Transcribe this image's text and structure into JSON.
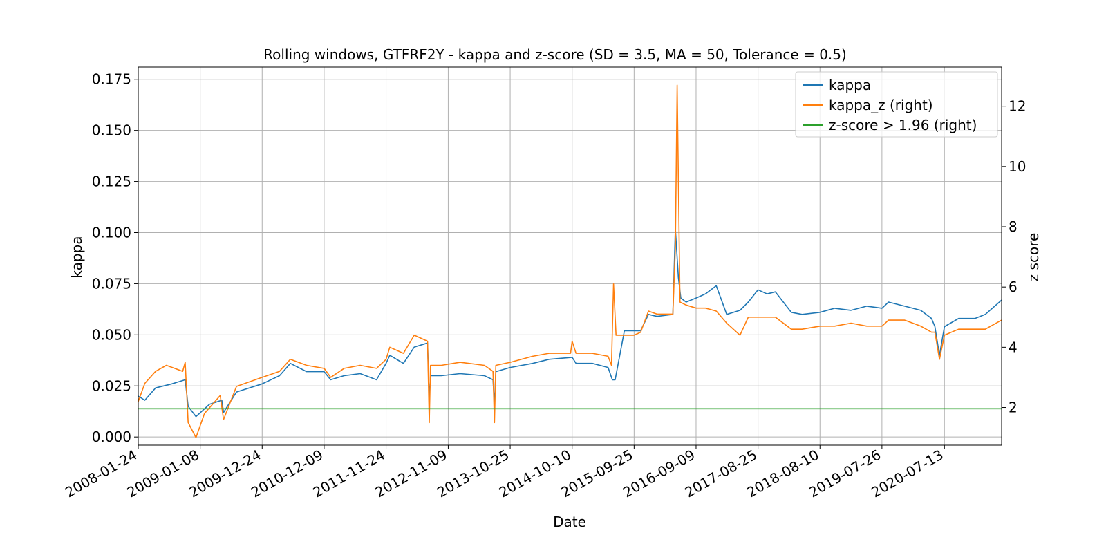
{
  "chart_data": {
    "type": "line",
    "title": "Rolling windows, GTFRF2Y - kappa and z-score (SD = 3.5, MA = 50, Tolerance  = 0.5)",
    "xlabel": "Date",
    "ylabel": "kappa",
    "ylabel_right": "z score",
    "xlim": [
      "2008-01-24",
      "2021-06-01"
    ],
    "ylim": [
      -0.004,
      0.181
    ],
    "ylim_right": [
      0.75,
      13.3
    ],
    "x_ticks": [
      "2008-01-24",
      "2009-01-08",
      "2009-12-24",
      "2010-12-09",
      "2011-11-24",
      "2012-11-09",
      "2013-10-25",
      "2014-10-10",
      "2015-09-25",
      "2016-09-09",
      "2017-08-25",
      "2018-08-10",
      "2019-07-26",
      "2020-07-13"
    ],
    "y_ticks": [
      "0.000",
      "0.025",
      "0.050",
      "0.075",
      "0.100",
      "0.125",
      "0.150",
      "0.175"
    ],
    "y_ticks_right": [
      "2",
      "4",
      "6",
      "8",
      "10",
      "12"
    ],
    "grid": true,
    "legend_position": "top-right",
    "colors": {
      "kappa": "#1f77b4",
      "kappa_z": "#ff7f0e",
      "threshold": "#2ca02c"
    },
    "series": [
      {
        "name": "kappa",
        "axis": "left",
        "x": [
          "2008-01-24",
          "2008-03-01",
          "2008-05-01",
          "2008-08-01",
          "2008-10-15",
          "2008-11-01",
          "2008-12-15",
          "2009-01-10",
          "2009-03-01",
          "2009-05-10",
          "2009-05-20",
          "2009-08-01",
          "2009-12-24",
          "2010-04-01",
          "2010-06-01",
          "2010-09-01",
          "2010-12-09",
          "2011-01-15",
          "2011-04-01",
          "2011-07-01",
          "2011-10-01",
          "2011-11-24",
          "2011-12-15",
          "2012-03-01",
          "2012-05-01",
          "2012-07-15",
          "2012-07-25",
          "2012-08-01",
          "2012-10-01",
          "2013-01-15",
          "2013-06-01",
          "2013-07-20",
          "2013-07-28",
          "2013-08-05",
          "2013-10-25",
          "2014-03-01",
          "2014-06-01",
          "2014-10-10",
          "2014-11-01",
          "2015-02-01",
          "2015-05-01",
          "2015-05-25",
          "2015-06-10",
          "2015-08-01",
          "2015-09-25",
          "2015-11-01",
          "2015-12-15",
          "2016-02-01",
          "2016-05-01",
          "2016-05-15",
          "2016-06-01",
          "2016-06-15",
          "2016-07-15",
          "2016-09-09",
          "2016-11-01",
          "2017-01-01",
          "2017-03-01",
          "2017-05-15",
          "2017-07-01",
          "2017-08-25",
          "2017-10-15",
          "2017-12-01",
          "2018-03-01",
          "2018-05-01",
          "2018-08-10",
          "2018-11-01",
          "2019-02-01",
          "2019-05-01",
          "2019-07-26",
          "2019-09-01",
          "2019-12-01",
          "2020-03-01",
          "2020-05-01",
          "2020-05-20",
          "2020-06-15",
          "2020-07-13",
          "2020-10-01",
          "2021-01-01",
          "2021-03-01",
          "2021-06-01"
        ],
        "values": [
          0.02,
          0.018,
          0.024,
          0.026,
          0.028,
          0.015,
          0.01,
          0.012,
          0.016,
          0.018,
          0.012,
          0.022,
          0.026,
          0.03,
          0.036,
          0.032,
          0.032,
          0.028,
          0.03,
          0.031,
          0.028,
          0.036,
          0.04,
          0.036,
          0.044,
          0.046,
          0.018,
          0.03,
          0.03,
          0.031,
          0.03,
          0.028,
          0.016,
          0.032,
          0.034,
          0.036,
          0.038,
          0.039,
          0.036,
          0.036,
          0.034,
          0.028,
          0.028,
          0.052,
          0.052,
          0.052,
          0.06,
          0.059,
          0.06,
          0.102,
          0.078,
          0.068,
          0.066,
          0.068,
          0.07,
          0.074,
          0.06,
          0.062,
          0.066,
          0.072,
          0.07,
          0.071,
          0.061,
          0.06,
          0.061,
          0.063,
          0.062,
          0.064,
          0.063,
          0.066,
          0.064,
          0.062,
          0.058,
          0.054,
          0.04,
          0.054,
          0.058,
          0.058,
          0.06,
          0.067
        ]
      },
      {
        "name": "kappa_z (right)",
        "axis": "right",
        "x": [
          "2008-01-24",
          "2008-03-01",
          "2008-05-01",
          "2008-07-01",
          "2008-10-01",
          "2008-10-15",
          "2008-11-01",
          "2008-12-15",
          "2009-02-01",
          "2009-05-01",
          "2009-05-20",
          "2009-08-01",
          "2009-12-24",
          "2010-04-01",
          "2010-06-01",
          "2010-09-01",
          "2010-12-09",
          "2011-01-15",
          "2011-04-01",
          "2011-07-01",
          "2011-10-01",
          "2011-11-24",
          "2011-12-15",
          "2012-03-01",
          "2012-05-01",
          "2012-07-15",
          "2012-07-25",
          "2012-08-01",
          "2012-10-01",
          "2013-01-15",
          "2013-06-01",
          "2013-07-20",
          "2013-07-28",
          "2013-08-05",
          "2013-10-25",
          "2014-03-01",
          "2014-06-01",
          "2014-10-01",
          "2014-10-10",
          "2014-11-01",
          "2015-02-01",
          "2015-05-01",
          "2015-05-20",
          "2015-06-01",
          "2015-06-15",
          "2015-08-01",
          "2015-09-25",
          "2015-11-01",
          "2015-12-15",
          "2016-02-01",
          "2016-05-01",
          "2016-05-15",
          "2016-05-25",
          "2016-06-10",
          "2016-07-15",
          "2016-09-09",
          "2016-11-01",
          "2017-01-01",
          "2017-03-01",
          "2017-05-15",
          "2017-07-01",
          "2017-08-25",
          "2017-10-15",
          "2017-12-01",
          "2018-03-01",
          "2018-05-01",
          "2018-08-10",
          "2018-11-01",
          "2019-02-01",
          "2019-05-01",
          "2019-07-26",
          "2019-09-01",
          "2019-12-01",
          "2020-03-01",
          "2020-05-01",
          "2020-05-20",
          "2020-06-15",
          "2020-07-13",
          "2020-10-01",
          "2021-01-01",
          "2021-03-01",
          "2021-06-01"
        ],
        "values": [
          2.2,
          2.8,
          3.2,
          3.4,
          3.2,
          3.5,
          1.5,
          1.0,
          1.8,
          2.4,
          1.6,
          2.7,
          3.0,
          3.2,
          3.6,
          3.4,
          3.3,
          3.0,
          3.3,
          3.4,
          3.3,
          3.6,
          4.0,
          3.8,
          4.4,
          4.2,
          1.5,
          3.4,
          3.4,
          3.5,
          3.4,
          3.2,
          1.5,
          3.4,
          3.5,
          3.7,
          3.8,
          3.8,
          4.2,
          3.8,
          3.8,
          3.7,
          3.4,
          6.1,
          4.4,
          4.4,
          4.4,
          4.5,
          5.2,
          5.1,
          5.1,
          7.3,
          12.7,
          5.5,
          5.4,
          5.3,
          5.3,
          5.2,
          4.8,
          4.4,
          5.0,
          5.0,
          5.0,
          5.0,
          4.6,
          4.6,
          4.7,
          4.7,
          4.8,
          4.7,
          4.7,
          4.9,
          4.9,
          4.7,
          4.5,
          4.5,
          3.6,
          4.4,
          4.6,
          4.6,
          4.6,
          4.9
        ]
      },
      {
        "name": "z-score > 1.96 (right)",
        "axis": "right",
        "x": [
          "2008-01-24",
          "2021-06-01"
        ],
        "values": [
          1.96,
          1.96
        ]
      }
    ]
  }
}
